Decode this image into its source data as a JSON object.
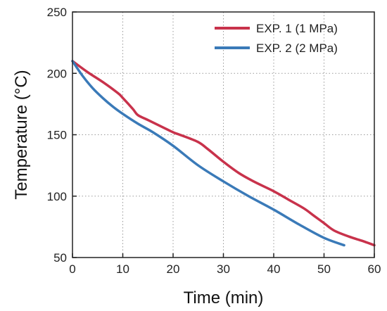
{
  "chart_data": {
    "type": "line",
    "title": "",
    "xlabel": "Time (min)",
    "ylabel": "Temperature (°C)",
    "xlim": [
      0,
      60
    ],
    "ylim": [
      50,
      250
    ],
    "xticks": [
      0,
      10,
      20,
      30,
      40,
      50,
      60
    ],
    "yticks": [
      50,
      100,
      150,
      200,
      250
    ],
    "grid": "dotted",
    "legend_position": "top-right",
    "series": [
      {
        "name": "EXP. 1 (1 MPa)",
        "color": "#c8324b",
        "x": [
          0,
          3,
          6,
          9,
          10,
          12,
          13,
          15,
          18,
          20,
          22,
          25,
          27,
          30,
          33,
          36,
          40,
          43,
          46,
          48,
          50,
          52,
          55,
          58,
          60
        ],
        "y": [
          210,
          201,
          193,
          184,
          180,
          171,
          166,
          162,
          156,
          152,
          149,
          144,
          138,
          128,
          119,
          112,
          104,
          97,
          90,
          84,
          78,
          72,
          67,
          63,
          60
        ]
      },
      {
        "name": "EXP. 2 (2 MPa)",
        "color": "#3a7ab8",
        "x": [
          0,
          2,
          4,
          6,
          8,
          10,
          13,
          16,
          20,
          25,
          30,
          35,
          40,
          45,
          50,
          54
        ],
        "y": [
          210,
          198,
          188,
          180,
          173,
          167,
          159,
          152,
          141,
          125,
          112,
          100,
          89,
          77,
          66,
          60
        ]
      }
    ]
  }
}
